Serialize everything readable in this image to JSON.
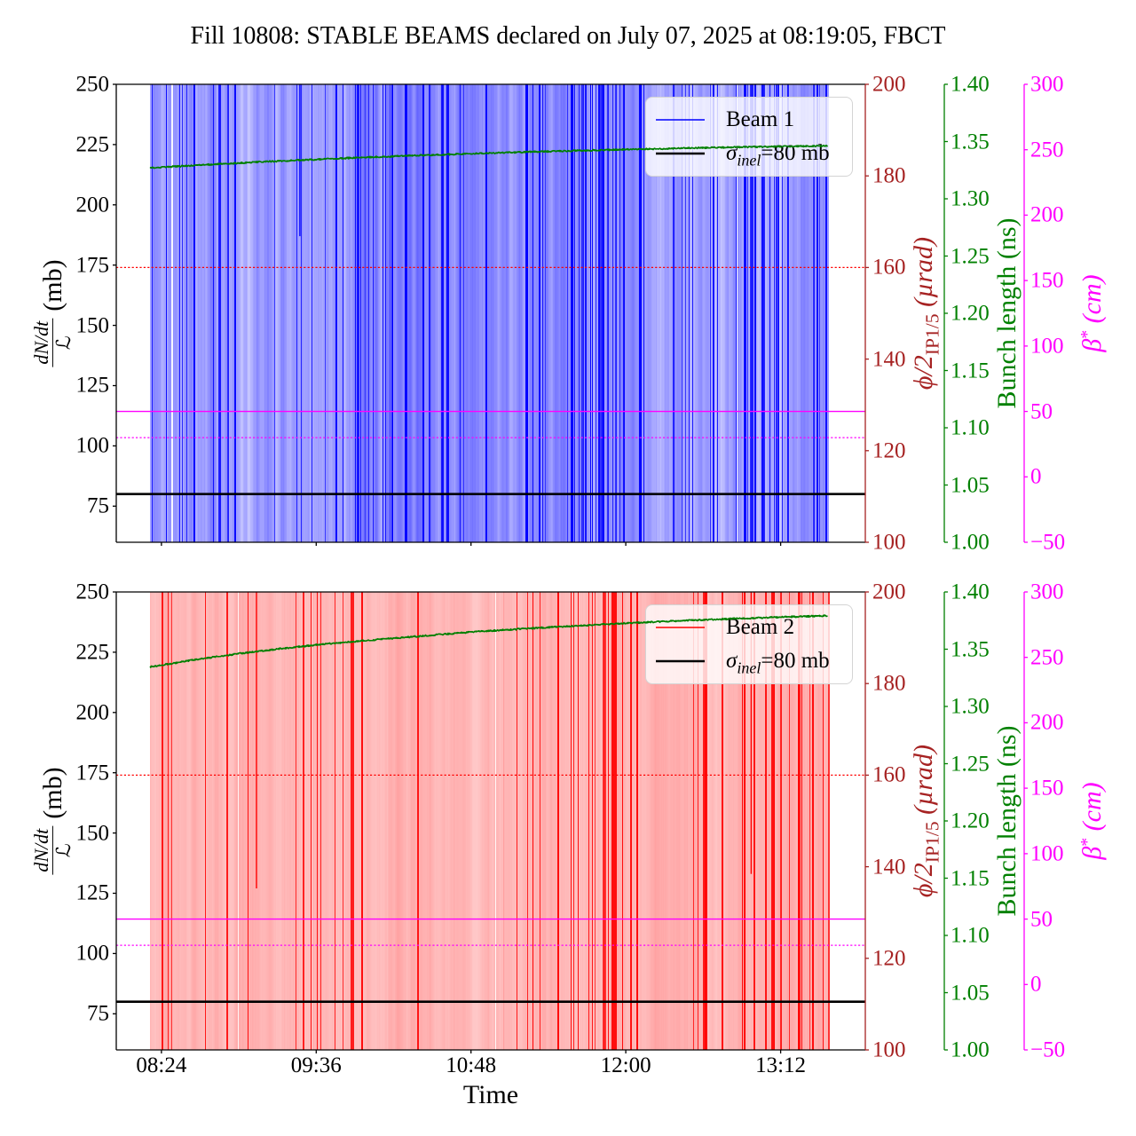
{
  "title": "Fill 10808: STABLE BEAMS declared on July 07, 2025 at 08:19:05, FBCT",
  "colors": {
    "beam1": "#0000ff",
    "beam2": "#ff0000",
    "rate_axis": "#a62222",
    "bunch_axis": "#008000",
    "beta_axis": "#ff00ff",
    "sigma_line": "#000000",
    "crossing_line": "#ff0000",
    "curve": "#008000",
    "spine": "#000000"
  },
  "xlabel": "Time",
  "ylabel_left": {
    "numerator": "dN/dt",
    "denominator": "ℒ",
    "unit": "(mb)"
  },
  "ylabel_rate": {
    "main": "ϕ/2",
    "sub": "IP1/5",
    "unit": " (µrad)"
  },
  "ylabel_bunch": "Bunch length (ns)",
  "ylabel_beta": {
    "main": "β",
    "sup": "*",
    "unit": " (cm)"
  },
  "legend_sigma": {
    "sym": "σ",
    "sub": "inel",
    "rest": "=80 mb"
  },
  "chart_data": {
    "type": "line",
    "x_axis": {
      "label": "Time",
      "lim_minutes": [
        483,
        831.4
      ],
      "ticks": [
        {
          "minutes": 504,
          "label": "08:24"
        },
        {
          "minutes": 576,
          "label": "09:36"
        },
        {
          "minutes": 648,
          "label": "10:48"
        },
        {
          "minutes": 720,
          "label": "12:00"
        },
        {
          "minutes": 792,
          "label": "13:12"
        }
      ],
      "data_start_minutes": 498.7,
      "data_end_minutes": 814.3
    },
    "y_axes": {
      "dndt_over_L_mb": {
        "lim": [
          60,
          250
        ],
        "ticks": [
          250,
          225,
          200,
          175,
          150,
          125,
          100,
          75
        ]
      },
      "half_crossing_angle_urad": {
        "lim": [
          100,
          200
        ],
        "ticks": [
          200,
          180,
          160,
          140,
          120,
          100
        ]
      },
      "bunch_length_ns": {
        "lim": [
          1.0,
          1.4
        ],
        "ticks": [
          "1.40",
          "1.35",
          "1.30",
          "1.25",
          "1.20",
          "1.15",
          "1.10",
          "1.05",
          "1.00"
        ]
      },
      "beta_star_cm": {
        "lim": [
          -50,
          300
        ],
        "ticks": [
          "300",
          "250",
          "200",
          "150",
          "100",
          "50",
          "0",
          "−50"
        ]
      }
    },
    "subplots": [
      {
        "name": "beam1",
        "legend_beam": "Beam 1",
        "stripe_color": "#0000ff",
        "bunch_length_series": [
          [
            498.7,
            1.327
          ],
          [
            525,
            1.3298
          ],
          [
            550,
            1.3322
          ],
          [
            576,
            1.3344
          ],
          [
            600,
            1.3363
          ],
          [
            625,
            1.338
          ],
          [
            648,
            1.3394
          ],
          [
            672,
            1.3408
          ],
          [
            696,
            1.342
          ],
          [
            720,
            1.3431
          ],
          [
            745,
            1.3441
          ],
          [
            768,
            1.345
          ],
          [
            792,
            1.3457
          ],
          [
            814.3,
            1.3462
          ]
        ],
        "hlines": [
          {
            "value": 80,
            "axis": "dndt_over_L_mb",
            "style": "solid",
            "color": "#000000",
            "width": 2.6
          },
          {
            "value": 160,
            "axis": "half_crossing_angle_urad",
            "style": "dotted",
            "color": "#ff0000",
            "width": 1.2
          },
          {
            "value": 50,
            "axis": "beta_star_cm",
            "style": "solid",
            "color": "#ff00ff",
            "width": 1.4
          },
          {
            "value": 30,
            "axis": "beta_star_cm",
            "style": "dotted",
            "color": "#ff00ff",
            "width": 1.2
          }
        ],
        "stripes": {
          "seed": 12345,
          "base_range": [
            0.26,
            0.42
          ],
          "jitter": 0.2,
          "dark_prob": 0.055,
          "white_prob": 0.004,
          "dark_bumps": [
            {
              "f0": 0.3,
              "f1": 0.47,
              "gain": 3.0
            },
            {
              "f0": 0.55,
              "f1": 0.73,
              "gain": 3.4
            },
            {
              "f0": 0.78,
              "f1": 1.0,
              "gain": 3.6
            }
          ],
          "base_bumps": [
            {
              "f0": 0.3,
              "f1": 0.72,
              "add": 0.09
            },
            {
              "f0": 0.78,
              "f1": 1.0,
              "add": 0.07
            }
          ],
          "features": [
            {
              "f": 0.34,
              "w": 2,
              "a": 0.0
            },
            {
              "f": 0.21,
              "w": 1,
              "a": 0.08
            },
            {
              "f": 0.495,
              "w": 2,
              "a": 0.95
            },
            {
              "f": 0.62,
              "w": 3,
              "a": 0.9
            },
            {
              "f": 0.875,
              "w": 3,
              "a": 0.92
            },
            {
              "f": 0.71,
              "w": 1,
              "a": 0.06
            },
            {
              "f": 0.024,
              "w": 1,
              "a": 0.9
            },
            {
              "f": 0.043,
              "w": 1,
              "a": 0.85
            },
            {
              "f": 0.995,
              "w": 2,
              "a": 0.9
            }
          ],
          "partial_lines": [
            {
              "f": 0.22,
              "to_value": 187,
              "a": 1.0
            }
          ]
        }
      },
      {
        "name": "beam2",
        "legend_beam": "Beam 2",
        "stripe_color": "#ff0000",
        "bunch_length_series": [
          [
            498.7,
            1.3345
          ],
          [
            520,
            1.341
          ],
          [
            545,
            1.3474
          ],
          [
            576,
            1.3538
          ],
          [
            605,
            1.3585
          ],
          [
            648,
            1.365
          ],
          [
            680,
            1.3687
          ],
          [
            720,
            1.3727
          ],
          [
            756,
            1.3757
          ],
          [
            792,
            1.378
          ],
          [
            814.3,
            1.3793
          ]
        ],
        "hlines": [
          {
            "value": 80,
            "axis": "dndt_over_L_mb",
            "style": "solid",
            "color": "#000000",
            "width": 2.6
          },
          {
            "value": 160,
            "axis": "half_crossing_angle_urad",
            "style": "dotted",
            "color": "#ff0000",
            "width": 1.2
          },
          {
            "value": 50,
            "axis": "beta_star_cm",
            "style": "solid",
            "color": "#ff00ff",
            "width": 1.4
          },
          {
            "value": 30,
            "axis": "beta_star_cm",
            "style": "dotted",
            "color": "#ff00ff",
            "width": 1.2
          }
        ],
        "stripes": {
          "seed": 77777,
          "base_range": [
            0.26,
            0.325
          ],
          "jitter": 0.07,
          "dark_prob": 0.04,
          "white_prob": 0.0015,
          "dark_bumps": [
            {
              "f0": 0.63,
              "f1": 0.72,
              "gain": 3.5
            },
            {
              "f0": 0.84,
              "f1": 1.0,
              "gain": 4.0
            }
          ],
          "base_bumps": [],
          "features": [
            {
              "f": 0.295,
              "w": 4,
              "a": 0.85
            },
            {
              "f": 0.68,
              "w": 6,
              "a": 0.92
            },
            {
              "f": 0.815,
              "w": 3,
              "a": 0.85
            },
            {
              "f": 0.915,
              "w": 4,
              "a": 0.9
            },
            {
              "f": 0.955,
              "w": 3,
              "a": 0.88
            },
            {
              "f": 0.24,
              "w": 1,
              "a": 0.1
            },
            {
              "f": 0.52,
              "w": 1,
              "a": 0.12
            }
          ],
          "partial_lines": [
            {
              "f": 0.156,
              "to_value": 127,
              "a": 1.0
            },
            {
              "f": 0.885,
              "to_value": 133,
              "a": 1.0
            }
          ]
        }
      }
    ],
    "annotations": {
      "sigma_inel_mb": 80,
      "half_crossing_angle_urad": 160,
      "beta_star_solid_cm": 50,
      "beta_star_dotted_cm": 30
    }
  }
}
